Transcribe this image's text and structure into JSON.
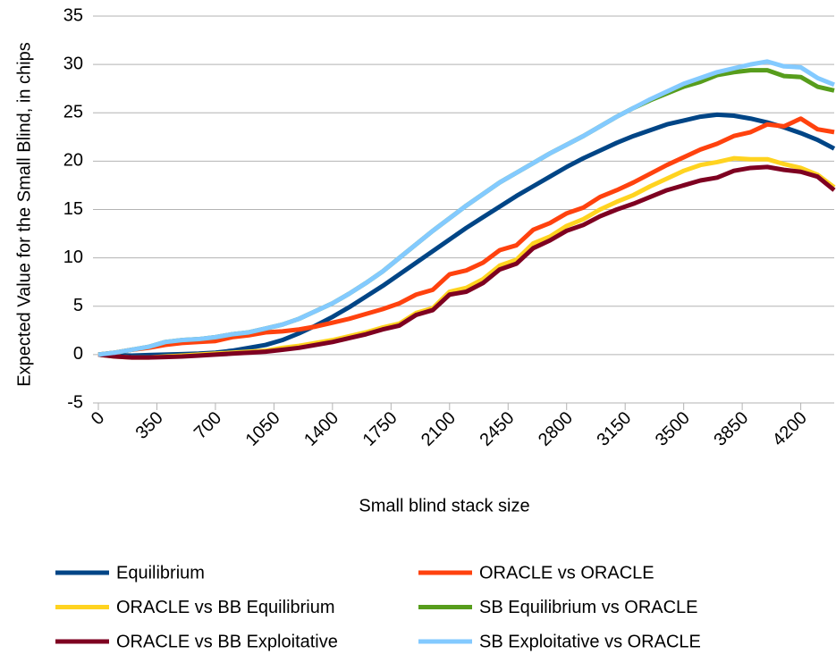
{
  "chart_data": {
    "type": "line",
    "x_label": "Small blind stack size",
    "y_label": "Expected Value for the Small Blind, in chips",
    "x": [
      0,
      100,
      200,
      300,
      400,
      500,
      600,
      700,
      800,
      900,
      1000,
      1100,
      1200,
      1300,
      1400,
      1500,
      1600,
      1700,
      1800,
      1900,
      2000,
      2100,
      2200,
      2300,
      2400,
      2500,
      2600,
      2700,
      2800,
      2900,
      3000,
      3100,
      3200,
      3300,
      3400,
      3500,
      3600,
      3700,
      3800,
      3900,
      4000,
      4100,
      4200,
      4300,
      4400
    ],
    "xlim": [
      0,
      4400
    ],
    "xticks": [
      0,
      350,
      700,
      1050,
      1400,
      1750,
      2100,
      2450,
      2800,
      3150,
      3500,
      3850,
      4200
    ],
    "ylim": [
      -5,
      35
    ],
    "yticks": [
      -5,
      0,
      5,
      10,
      15,
      20,
      25,
      30,
      35
    ],
    "grid": true,
    "legend": "bottom",
    "series": [
      {
        "name": "Equilibrium",
        "color": "#004586",
        "values": [
          0,
          -0.05,
          -0.1,
          -0.05,
          0,
          0.05,
          0.1,
          0.2,
          0.4,
          0.7,
          1.0,
          1.5,
          2.2,
          3.0,
          3.9,
          4.9,
          6.0,
          7.1,
          8.3,
          9.5,
          10.7,
          11.9,
          13.1,
          14.2,
          15.3,
          16.4,
          17.4,
          18.4,
          19.4,
          20.3,
          21.1,
          21.9,
          22.6,
          23.2,
          23.8,
          24.2,
          24.6,
          24.8,
          24.7,
          24.4,
          24.0,
          23.5,
          22.9,
          22.2,
          21.3
        ]
      },
      {
        "name": "ORACLE vs ORACLE",
        "color": "#ff420e",
        "values": [
          0,
          0.2,
          0.5,
          0.7,
          1.0,
          1.2,
          1.3,
          1.4,
          1.8,
          2.0,
          2.3,
          2.4,
          2.6,
          2.9,
          3.3,
          3.7,
          4.2,
          4.7,
          5.3,
          6.2,
          6.7,
          8.3,
          8.7,
          9.5,
          10.8,
          11.3,
          12.9,
          13.6,
          14.6,
          15.2,
          16.3,
          17.0,
          17.8,
          18.7,
          19.6,
          20.4,
          21.2,
          21.8,
          22.6,
          23.0,
          23.8,
          23.6,
          24.4,
          23.3,
          23.0
        ]
      },
      {
        "name": "ORACLE vs BB Equilibrium",
        "color": "#ffd320",
        "values": [
          0,
          -0.2,
          -0.3,
          -0.3,
          -0.2,
          -0.1,
          0,
          0.1,
          0.2,
          0.3,
          0.4,
          0.7,
          0.9,
          1.2,
          1.5,
          1.9,
          2.3,
          2.8,
          3.2,
          4.3,
          4.8,
          6.5,
          6.9,
          7.8,
          9.2,
          9.8,
          11.5,
          12.2,
          13.3,
          14.0,
          15.0,
          15.8,
          16.5,
          17.4,
          18.2,
          19.0,
          19.6,
          19.9,
          20.3,
          20.2,
          20.2,
          19.7,
          19.3,
          18.6,
          17.3
        ]
      },
      {
        "name": "SB Equilibrium vs ORACLE",
        "color": "#579d1c",
        "values": [
          0,
          0.2,
          0.5,
          0.8,
          1.3,
          1.5,
          1.6,
          1.8,
          2.1,
          2.3,
          2.7,
          3.1,
          3.7,
          4.5,
          5.3,
          6.3,
          7.4,
          8.6,
          10.0,
          11.4,
          12.8,
          14.1,
          15.4,
          16.6,
          17.8,
          18.8,
          19.8,
          20.8,
          21.7,
          22.6,
          23.6,
          24.6,
          25.5,
          26.3,
          27.0,
          27.7,
          28.2,
          28.9,
          29.2,
          29.4,
          29.4,
          28.8,
          28.7,
          27.7,
          27.3
        ]
      },
      {
        "name": "ORACLE vs BB Exploitative",
        "color": "#7e0021",
        "values": [
          0,
          -0.2,
          -0.3,
          -0.3,
          -0.25,
          -0.2,
          -0.1,
          0,
          0.1,
          0.2,
          0.3,
          0.5,
          0.7,
          1.0,
          1.3,
          1.7,
          2.1,
          2.6,
          3.0,
          4.1,
          4.6,
          6.2,
          6.5,
          7.4,
          8.8,
          9.4,
          11.0,
          11.8,
          12.8,
          13.4,
          14.3,
          15.0,
          15.6,
          16.3,
          17.0,
          17.5,
          18.0,
          18.3,
          19.0,
          19.3,
          19.4,
          19.1,
          18.9,
          18.4,
          17.0
        ]
      },
      {
        "name": "SB Exploitative vs ORACLE",
        "color": "#83caff",
        "values": [
          0,
          0.2,
          0.5,
          0.8,
          1.3,
          1.5,
          1.6,
          1.8,
          2.1,
          2.3,
          2.7,
          3.1,
          3.7,
          4.5,
          5.3,
          6.3,
          7.4,
          8.6,
          10.0,
          11.4,
          12.8,
          14.1,
          15.4,
          16.6,
          17.8,
          18.8,
          19.8,
          20.8,
          21.7,
          22.6,
          23.6,
          24.6,
          25.5,
          26.4,
          27.2,
          28.0,
          28.6,
          29.2,
          29.6,
          30.0,
          30.3,
          29.8,
          29.7,
          28.6,
          27.9
        ]
      }
    ]
  }
}
